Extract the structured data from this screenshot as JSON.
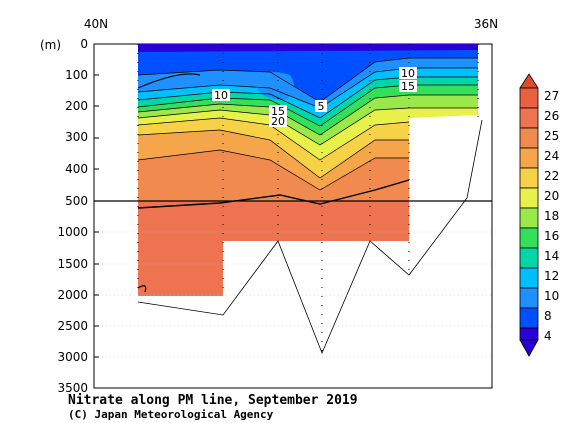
{
  "chart_data": {
    "type": "heatmap",
    "title": "Nitrate along PM line, September 2019",
    "credit": "(C) Japan Meteorological Agency",
    "x_start_label": "40N",
    "x_end_label": "36N",
    "y_unit_label": "(m)",
    "y_upper_ticks": [
      "0",
      "100",
      "200",
      "300",
      "400",
      "500"
    ],
    "y_lower_ticks": [
      "1000",
      "1500",
      "2000",
      "2500",
      "3000",
      "3500"
    ],
    "y_upper_range": [
      0,
      500
    ],
    "y_lower_range": [
      500,
      3500
    ],
    "colorbar_levels": [
      "4",
      "8",
      "10",
      "12",
      "14",
      "16",
      "18",
      "20",
      "22",
      "24",
      "25",
      "26",
      "27"
    ],
    "contour_labels": [
      "5",
      "10",
      "10",
      "15",
      "15",
      "20",
      "10"
    ],
    "colors": {
      "lt4": "#2b00d6",
      "4-8": "#0050ff",
      "8-10": "#1e90ff",
      "10-12": "#00bfff",
      "12-14": "#00d6a8",
      "14-16": "#34e05a",
      "16-18": "#9be84a",
      "18-20": "#e8f04a",
      "20-22": "#f7d247",
      "22-24": "#f5a54a",
      "24-25": "#f08a4e",
      "25-26": "#ee7350",
      "26-27": "#ea6040",
      "gt27": "#e04a2a"
    }
  }
}
